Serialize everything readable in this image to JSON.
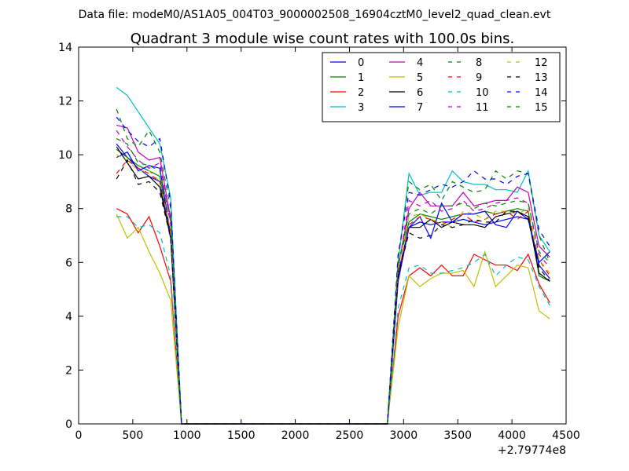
{
  "header_text": "Data file: modeM0/AS1A05_004T03_9000002508_16904cztM0_level2_quad_clean.evt",
  "chart_data": {
    "type": "line",
    "title": "Quadrant 3 module wise count rates with 100.0s bins.",
    "xlabel": "",
    "ylabel": "",
    "x_offset_label": "+2.79774e8",
    "xlim": [
      0,
      4500
    ],
    "ylim": [
      0,
      14
    ],
    "xticks": [
      0,
      500,
      1000,
      1500,
      2000,
      2500,
      3000,
      3500,
      4000,
      4500
    ],
    "yticks": [
      0,
      2,
      4,
      6,
      8,
      10,
      12,
      14
    ],
    "grid": false,
    "legend_position": "top-right",
    "x": [
      350,
      450,
      550,
      650,
      750,
      850,
      950,
      1050,
      1150,
      1250,
      1350,
      1450,
      1550,
      1650,
      1750,
      1850,
      1950,
      2050,
      2150,
      2250,
      2350,
      2450,
      2550,
      2650,
      2750,
      2850,
      2950,
      3050,
      3150,
      3250,
      3350,
      3450,
      3550,
      3650,
      3750,
      3850,
      3950,
      4050,
      4150,
      4250,
      4350
    ],
    "series": [
      {
        "name": "0",
        "color": "#0000ff",
        "dash": "solid",
        "values": [
          10.4,
          9.9,
          9.5,
          9.2,
          9.0,
          6.9,
          0,
          0,
          0,
          0,
          0,
          0,
          0,
          0,
          0,
          0,
          0,
          0,
          0,
          0,
          0,
          0,
          0,
          0,
          0,
          0,
          5.6,
          7.3,
          7.5,
          7.4,
          7.5,
          7.5,
          7.6,
          7.5,
          7.4,
          7.5,
          7.6,
          7.7,
          7.6,
          5.9,
          5.4
        ]
      },
      {
        "name": "1",
        "color": "#008000",
        "dash": "solid",
        "values": [
          10.2,
          9.9,
          9.6,
          9.4,
          9.2,
          7.0,
          0,
          0,
          0,
          0,
          0,
          0,
          0,
          0,
          0,
          0,
          0,
          0,
          0,
          0,
          0,
          0,
          0,
          0,
          0,
          0,
          5.9,
          7.5,
          7.8,
          7.7,
          7.6,
          7.7,
          7.8,
          7.8,
          7.9,
          7.8,
          7.9,
          8.0,
          7.9,
          5.5,
          5.3
        ]
      },
      {
        "name": "2",
        "color": "#ff0000",
        "dash": "solid",
        "values": [
          8.0,
          7.8,
          7.1,
          7.7,
          6.6,
          5.3,
          0,
          0,
          0,
          0,
          0,
          0,
          0,
          0,
          0,
          0,
          0,
          0,
          0,
          0,
          0,
          0,
          0,
          0,
          0,
          0,
          4.0,
          5.5,
          5.8,
          5.5,
          5.9,
          5.5,
          5.5,
          6.3,
          6.1,
          5.9,
          5.9,
          5.7,
          6.3,
          5.2,
          4.5
        ]
      },
      {
        "name": "3",
        "color": "#00bfbf",
        "dash": "solid",
        "values": [
          12.5,
          12.2,
          11.6,
          11.0,
          10.4,
          8.4,
          0,
          0,
          0,
          0,
          0,
          0,
          0,
          0,
          0,
          0,
          0,
          0,
          0,
          0,
          0,
          0,
          0,
          0,
          0,
          0,
          6.0,
          9.3,
          8.5,
          8.6,
          8.6,
          9.4,
          9.0,
          8.9,
          8.9,
          8.7,
          8.7,
          8.6,
          9.4,
          7.0,
          6.4
        ]
      },
      {
        "name": "4",
        "color": "#bf00bf",
        "dash": "solid",
        "values": [
          11.1,
          11.0,
          10.1,
          9.8,
          9.9,
          7.6,
          0,
          0,
          0,
          0,
          0,
          0,
          0,
          0,
          0,
          0,
          0,
          0,
          0,
          0,
          0,
          0,
          0,
          0,
          0,
          0,
          5.8,
          8.0,
          8.6,
          8.1,
          8.1,
          8.1,
          8.6,
          8.1,
          8.2,
          8.3,
          8.3,
          8.8,
          8.6,
          6.6,
          6.2
        ]
      },
      {
        "name": "5",
        "color": "#bfbf00",
        "dash": "solid",
        "values": [
          7.8,
          6.9,
          7.3,
          6.4,
          5.6,
          4.6,
          0,
          0,
          0,
          0,
          0,
          0,
          0,
          0,
          0,
          0,
          0,
          0,
          0,
          0,
          0,
          0,
          0,
          0,
          0,
          0,
          3.6,
          5.5,
          5.1,
          5.4,
          5.6,
          5.6,
          5.7,
          5.1,
          6.4,
          5.1,
          5.5,
          5.9,
          5.8,
          4.2,
          3.9
        ]
      },
      {
        "name": "6",
        "color": "#000000",
        "dash": "solid",
        "values": [
          10.3,
          9.7,
          9.1,
          9.2,
          8.8,
          6.9,
          0,
          0,
          0,
          0,
          0,
          0,
          0,
          0,
          0,
          0,
          0,
          0,
          0,
          0,
          0,
          0,
          0,
          0,
          0,
          0,
          5.5,
          7.3,
          7.3,
          7.6,
          7.3,
          7.5,
          7.4,
          7.4,
          7.3,
          7.7,
          7.8,
          7.9,
          7.7,
          5.6,
          5.3
        ]
      },
      {
        "name": "7",
        "color": "#0000ff",
        "dash": "solid",
        "values": [
          9.9,
          10.1,
          9.4,
          9.6,
          9.5,
          7.0,
          0,
          0,
          0,
          0,
          0,
          0,
          0,
          0,
          0,
          0,
          0,
          0,
          0,
          0,
          0,
          0,
          0,
          0,
          0,
          0,
          5.3,
          7.3,
          7.7,
          6.9,
          8.2,
          7.5,
          7.8,
          7.8,
          7.9,
          7.4,
          7.3,
          7.9,
          7.6,
          6.0,
          6.4
        ]
      },
      {
        "name": "8",
        "color": "#008000",
        "dash": "dashed",
        "values": [
          11.7,
          10.6,
          10.3,
          10.9,
          10.1,
          8.0,
          0,
          0,
          0,
          0,
          0,
          0,
          0,
          0,
          0,
          0,
          0,
          0,
          0,
          0,
          0,
          0,
          0,
          0,
          0,
          0,
          6.2,
          9.0,
          8.7,
          8.9,
          8.3,
          9.0,
          8.8,
          8.6,
          8.7,
          9.4,
          9.1,
          9.4,
          9.3,
          7.0,
          6.0
        ]
      },
      {
        "name": "9",
        "color": "#ff0000",
        "dash": "dashed",
        "values": [
          9.3,
          9.8,
          9.5,
          9.3,
          9.0,
          7.1,
          0,
          0,
          0,
          0,
          0,
          0,
          0,
          0,
          0,
          0,
          0,
          0,
          0,
          0,
          0,
          0,
          0,
          0,
          0,
          0,
          5.5,
          7.4,
          7.7,
          7.6,
          7.4,
          7.6,
          7.8,
          7.5,
          7.6,
          7.8,
          7.9,
          7.6,
          7.9,
          6.1,
          5.5
        ]
      },
      {
        "name": "10",
        "color": "#00bfbf",
        "dash": "dashed",
        "values": [
          7.7,
          7.7,
          7.3,
          7.4,
          7.1,
          5.5,
          0,
          0,
          0,
          0,
          0,
          0,
          0,
          0,
          0,
          0,
          0,
          0,
          0,
          0,
          0,
          0,
          0,
          0,
          0,
          0,
          4.3,
          5.8,
          5.9,
          5.6,
          5.6,
          5.7,
          5.8,
          6.0,
          6.3,
          5.5,
          5.9,
          6.2,
          6.1,
          5.1,
          4.4
        ]
      },
      {
        "name": "11",
        "color": "#bf00bf",
        "dash": "dashed",
        "values": [
          10.9,
          10.3,
          9.8,
          9.5,
          9.7,
          7.4,
          0,
          0,
          0,
          0,
          0,
          0,
          0,
          0,
          0,
          0,
          0,
          0,
          0,
          0,
          0,
          0,
          0,
          0,
          0,
          0,
          5.7,
          8.3,
          8.1,
          8.3,
          7.9,
          8.0,
          8.3,
          7.9,
          8.0,
          8.2,
          8.3,
          8.4,
          8.2,
          6.3,
          5.8
        ]
      },
      {
        "name": "12",
        "color": "#bfbf00",
        "dash": "dashed",
        "values": [
          10.0,
          9.8,
          9.4,
          9.4,
          9.0,
          7.2,
          0,
          0,
          0,
          0,
          0,
          0,
          0,
          0,
          0,
          0,
          0,
          0,
          0,
          0,
          0,
          0,
          0,
          0,
          0,
          0,
          5.8,
          7.7,
          7.8,
          7.6,
          7.5,
          7.3,
          7.9,
          7.8,
          7.6,
          7.9,
          7.9,
          7.8,
          8.0,
          6.1,
          5.6
        ]
      },
      {
        "name": "13",
        "color": "#000000",
        "dash": "dashed",
        "values": [
          9.1,
          9.8,
          8.9,
          9.0,
          8.6,
          6.9,
          0,
          0,
          0,
          0,
          0,
          0,
          0,
          0,
          0,
          0,
          0,
          0,
          0,
          0,
          0,
          0,
          0,
          0,
          0,
          0,
          5.5,
          7.1,
          6.9,
          7.0,
          7.4,
          7.3,
          7.4,
          7.6,
          7.5,
          7.5,
          7.9,
          7.9,
          7.6,
          5.8,
          5.3
        ]
      },
      {
        "name": "14",
        "color": "#0000ff",
        "dash": "dashed",
        "values": [
          11.4,
          10.9,
          10.5,
          10.3,
          10.6,
          8.2,
          0,
          0,
          0,
          0,
          0,
          0,
          0,
          0,
          0,
          0,
          0,
          0,
          0,
          0,
          0,
          0,
          0,
          0,
          0,
          0,
          6.3,
          8.6,
          8.5,
          8.7,
          8.9,
          8.8,
          9.0,
          9.4,
          9.1,
          9.1,
          8.9,
          9.2,
          9.3,
          7.2,
          6.6
        ]
      },
      {
        "name": "15",
        "color": "#008000",
        "dash": "dashed",
        "values": [
          10.6,
          10.4,
          9.7,
          9.6,
          9.4,
          7.5,
          0,
          0,
          0,
          0,
          0,
          0,
          0,
          0,
          0,
          0,
          0,
          0,
          0,
          0,
          0,
          0,
          0,
          0,
          0,
          0,
          5.9,
          7.8,
          8.0,
          7.8,
          8.1,
          8.1,
          8.2,
          8.0,
          8.2,
          8.1,
          8.2,
          8.3,
          8.2,
          6.4,
          6.0
        ]
      }
    ]
  }
}
